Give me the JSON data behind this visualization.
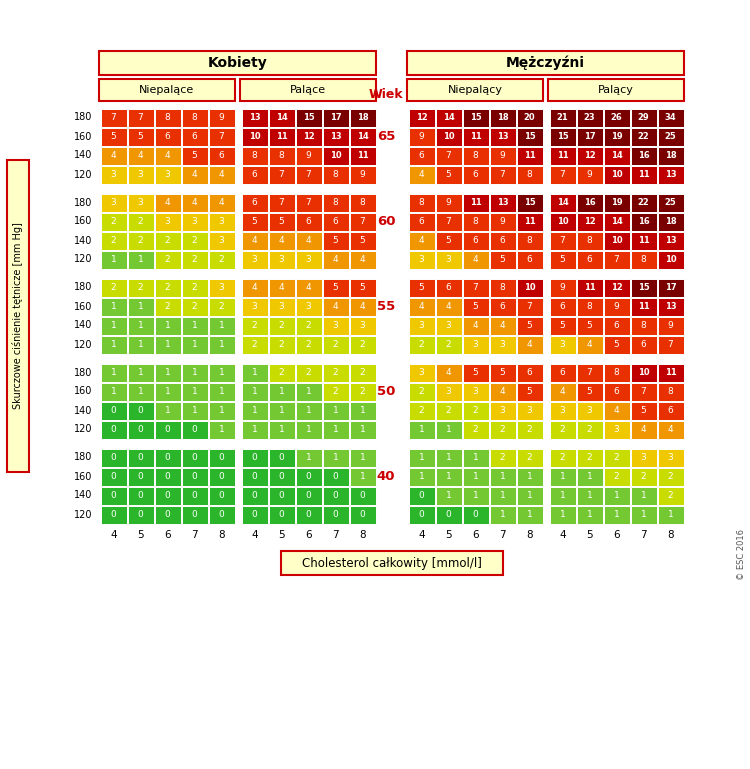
{
  "title_women": "Kobiety",
  "title_men": "Mężczyźni",
  "subtitle_nonsmoker_w": "Niepalące",
  "subtitle_smoker_w": "Palące",
  "subtitle_nonsmoker_m": "Niepalący",
  "subtitle_smoker_m": "Palący",
  "age_label": "Wiek",
  "ages": [
    65,
    60,
    55,
    50,
    40
  ],
  "bp_labels": [
    180,
    160,
    140,
    120
  ],
  "chol_labels": [
    4,
    5,
    6,
    7,
    8
  ],
  "ylabel": "Skurczowe ciśnienie tętnicze [mm Hg]",
  "xlabel": "Cholesterol całkowity [mmol/l]",
  "copyright": "© ESC 2016",
  "data": {
    "women_nonsmoker": {
      "65": {
        "180": [
          7,
          7,
          8,
          8,
          9
        ],
        "160": [
          5,
          5,
          6,
          6,
          7
        ],
        "140": [
          4,
          4,
          4,
          5,
          6
        ],
        "120": [
          3,
          3,
          3,
          4,
          4
        ]
      },
      "60": {
        "180": [
          3,
          3,
          4,
          4,
          4
        ],
        "160": [
          2,
          2,
          3,
          3,
          3
        ],
        "140": [
          2,
          2,
          2,
          2,
          3
        ],
        "120": [
          1,
          1,
          2,
          2,
          2
        ]
      },
      "55": {
        "180": [
          2,
          2,
          2,
          2,
          3
        ],
        "160": [
          1,
          1,
          2,
          2,
          2
        ],
        "140": [
          1,
          1,
          1,
          1,
          1
        ],
        "120": [
          1,
          1,
          1,
          1,
          1
        ]
      },
      "50": {
        "180": [
          1,
          1,
          1,
          1,
          1
        ],
        "160": [
          1,
          1,
          1,
          1,
          1
        ],
        "140": [
          0,
          0,
          1,
          1,
          1
        ],
        "120": [
          0,
          0,
          0,
          0,
          1
        ]
      },
      "40": {
        "180": [
          0,
          0,
          0,
          0,
          0
        ],
        "160": [
          0,
          0,
          0,
          0,
          0
        ],
        "140": [
          0,
          0,
          0,
          0,
          0
        ],
        "120": [
          0,
          0,
          0,
          0,
          0
        ]
      }
    },
    "women_smoker": {
      "65": {
        "180": [
          13,
          14,
          15,
          17,
          18
        ],
        "160": [
          10,
          11,
          12,
          13,
          14
        ],
        "140": [
          8,
          8,
          9,
          10,
          11
        ],
        "120": [
          6,
          7,
          7,
          8,
          9
        ]
      },
      "60": {
        "180": [
          6,
          7,
          7,
          8,
          8
        ],
        "160": [
          5,
          5,
          6,
          6,
          7
        ],
        "140": [
          4,
          4,
          4,
          5,
          5
        ],
        "120": [
          3,
          3,
          3,
          4,
          4
        ]
      },
      "55": {
        "180": [
          4,
          4,
          4,
          5,
          5
        ],
        "160": [
          3,
          3,
          3,
          4,
          4
        ],
        "140": [
          2,
          2,
          2,
          3,
          3
        ],
        "120": [
          2,
          2,
          2,
          2,
          2
        ]
      },
      "50": {
        "180": [
          1,
          2,
          2,
          2,
          2
        ],
        "160": [
          1,
          1,
          1,
          2,
          2
        ],
        "140": [
          1,
          1,
          1,
          1,
          1
        ],
        "120": [
          1,
          1,
          1,
          1,
          1
        ]
      },
      "40": {
        "180": [
          0,
          0,
          1,
          1,
          1
        ],
        "160": [
          0,
          0,
          0,
          0,
          1
        ],
        "140": [
          0,
          0,
          0,
          0,
          0
        ],
        "120": [
          0,
          0,
          0,
          0,
          0
        ]
      }
    },
    "men_nonsmoker": {
      "65": {
        "180": [
          12,
          14,
          15,
          18,
          20
        ],
        "160": [
          9,
          10,
          11,
          13,
          15
        ],
        "140": [
          6,
          7,
          8,
          9,
          11
        ],
        "120": [
          4,
          5,
          6,
          7,
          8
        ]
      },
      "60": {
        "180": [
          8,
          9,
          11,
          13,
          15
        ],
        "160": [
          6,
          7,
          8,
          9,
          11
        ],
        "140": [
          4,
          5,
          6,
          6,
          8
        ],
        "120": [
          3,
          3,
          4,
          5,
          6
        ]
      },
      "55": {
        "180": [
          5,
          6,
          7,
          8,
          10
        ],
        "160": [
          4,
          4,
          5,
          6,
          7
        ],
        "140": [
          3,
          3,
          4,
          4,
          5
        ],
        "120": [
          2,
          2,
          3,
          3,
          4
        ]
      },
      "50": {
        "180": [
          3,
          4,
          5,
          5,
          6
        ],
        "160": [
          2,
          3,
          3,
          4,
          5
        ],
        "140": [
          2,
          2,
          2,
          3,
          3
        ],
        "120": [
          1,
          1,
          2,
          2,
          2
        ]
      },
      "40": {
        "180": [
          1,
          1,
          1,
          2,
          2
        ],
        "160": [
          1,
          1,
          1,
          1,
          1
        ],
        "140": [
          0,
          1,
          1,
          1,
          1
        ],
        "120": [
          0,
          0,
          0,
          1,
          1
        ]
      }
    },
    "men_smoker": {
      "65": {
        "180": [
          21,
          23,
          26,
          29,
          34
        ],
        "160": [
          15,
          17,
          19,
          22,
          25
        ],
        "140": [
          11,
          12,
          14,
          16,
          18
        ],
        "120": [
          7,
          9,
          10,
          11,
          13
        ]
      },
      "60": {
        "180": [
          14,
          16,
          19,
          22,
          25
        ],
        "160": [
          10,
          12,
          14,
          16,
          18
        ],
        "140": [
          7,
          8,
          10,
          11,
          13
        ],
        "120": [
          5,
          6,
          7,
          8,
          10
        ]
      },
      "55": {
        "180": [
          9,
          11,
          12,
          15,
          17
        ],
        "160": [
          6,
          8,
          9,
          11,
          13
        ],
        "140": [
          5,
          5,
          6,
          8,
          9
        ],
        "120": [
          3,
          4,
          5,
          6,
          7
        ]
      },
      "50": {
        "180": [
          6,
          7,
          8,
          10,
          11
        ],
        "160": [
          4,
          5,
          6,
          7,
          8
        ],
        "140": [
          3,
          3,
          4,
          5,
          6
        ],
        "120": [
          2,
          2,
          3,
          4,
          4
        ]
      },
      "40": {
        "180": [
          2,
          2,
          2,
          3,
          3
        ],
        "160": [
          1,
          1,
          2,
          2,
          2
        ],
        "140": [
          1,
          1,
          1,
          1,
          2
        ],
        "120": [
          1,
          1,
          1,
          1,
          1
        ]
      }
    }
  }
}
